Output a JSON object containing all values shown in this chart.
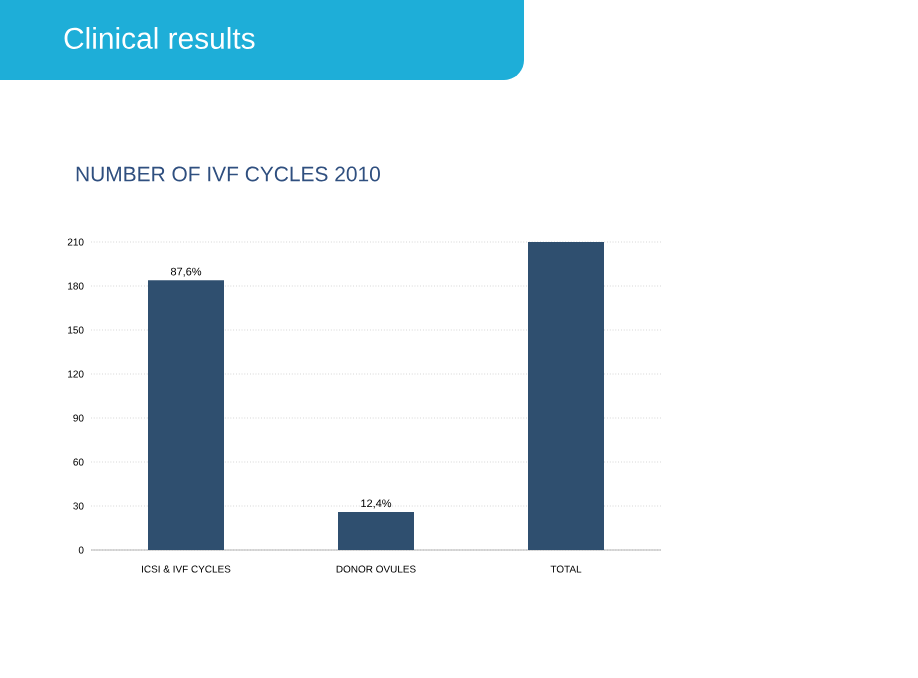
{
  "chart_data": {
    "type": "bar",
    "title": "Clinical results",
    "subtitle": "NUMBER OF IVF CYCLES 2010",
    "categories": [
      "ICSI & IVF CYCLES",
      "DONOR OVULES",
      "TOTAL"
    ],
    "values": [
      184,
      26,
      210
    ],
    "annotations": [
      {
        "text": "87,6%",
        "x": "ICSI & IVF CYCLES",
        "y": 184
      },
      {
        "text": "12,4%",
        "x": "DONOR OVULES",
        "y": 26
      }
    ],
    "color": "#2f4f6f",
    "ylim": [
      0,
      210
    ],
    "yticks": [
      0,
      30,
      60,
      90,
      120,
      150,
      180,
      210
    ],
    "grid": "y"
  }
}
